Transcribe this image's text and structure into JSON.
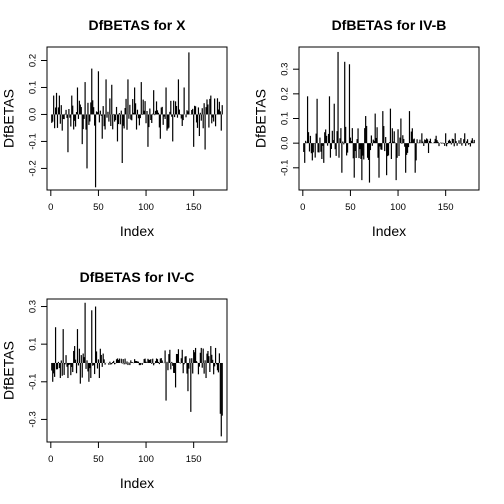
{
  "chart_data": [
    {
      "type": "histogram-line",
      "title": "DfBETAS for X",
      "xlabel": "Index",
      "ylabel": "DfBETAS",
      "xlim": [
        -4,
        185
      ],
      "ylim": [
        -0.28,
        0.25
      ],
      "xticks": [
        0,
        50,
        100,
        150
      ],
      "yticks": [
        -0.2,
        -0.1,
        0.0,
        0.1,
        0.2
      ],
      "ytick_labels": [
        "-0.2",
        "-0.1",
        "0.0",
        "0.1",
        "0.2"
      ],
      "seed": 11,
      "n": 180,
      "spikes": [
        {
          "x": 3,
          "y": 0.07
        },
        {
          "x": 6,
          "y": 0.08
        },
        {
          "x": 9,
          "y": 0.07
        },
        {
          "x": 12,
          "y": -0.06
        },
        {
          "x": 18,
          "y": -0.14
        },
        {
          "x": 22,
          "y": 0.07
        },
        {
          "x": 28,
          "y": 0.1
        },
        {
          "x": 33,
          "y": -0.11
        },
        {
          "x": 36,
          "y": 0.12
        },
        {
          "x": 38,
          "y": -0.2
        },
        {
          "x": 43,
          "y": 0.17
        },
        {
          "x": 47,
          "y": -0.27
        },
        {
          "x": 50,
          "y": 0.16
        },
        {
          "x": 54,
          "y": -0.09
        },
        {
          "x": 58,
          "y": 0.13
        },
        {
          "x": 64,
          "y": 0.11
        },
        {
          "x": 70,
          "y": -0.1
        },
        {
          "x": 75,
          "y": -0.18
        },
        {
          "x": 81,
          "y": 0.13
        },
        {
          "x": 88,
          "y": 0.1
        },
        {
          "x": 95,
          "y": 0.12
        },
        {
          "x": 102,
          "y": -0.12
        },
        {
          "x": 108,
          "y": 0.09
        },
        {
          "x": 115,
          "y": -0.09
        },
        {
          "x": 121,
          "y": 0.1
        },
        {
          "x": 128,
          "y": -0.1
        },
        {
          "x": 134,
          "y": 0.13
        },
        {
          "x": 140,
          "y": 0.1
        },
        {
          "x": 145,
          "y": 0.23
        },
        {
          "x": 150,
          "y": -0.12
        },
        {
          "x": 156,
          "y": -0.08
        },
        {
          "x": 162,
          "y": -0.13
        },
        {
          "x": 168,
          "y": 0.07
        },
        {
          "x": 175,
          "y": 0.06
        },
        {
          "x": 179,
          "y": -0.06
        }
      ]
    },
    {
      "type": "histogram-line",
      "title": "DfBETAS for IV-B",
      "xlabel": "Index",
      "ylabel": "DfBETAS",
      "xlim": [
        -4,
        185
      ],
      "ylim": [
        -0.19,
        0.39
      ],
      "xticks": [
        0,
        50,
        100,
        150
      ],
      "yticks": [
        -0.1,
        0.0,
        0.1,
        0.2,
        0.3
      ],
      "ytick_labels": [
        "-0.1",
        "0.0",
        "0.1",
        "0.2",
        "0.3"
      ],
      "seed": 23,
      "n": 180,
      "spikes": [
        {
          "x": 2,
          "y": -0.08
        },
        {
          "x": 5,
          "y": 0.19
        },
        {
          "x": 10,
          "y": -0.07
        },
        {
          "x": 15,
          "y": 0.18
        },
        {
          "x": 22,
          "y": -0.08
        },
        {
          "x": 28,
          "y": 0.19
        },
        {
          "x": 33,
          "y": 0.16
        },
        {
          "x": 37,
          "y": 0.37
        },
        {
          "x": 41,
          "y": -0.12
        },
        {
          "x": 44,
          "y": 0.33
        },
        {
          "x": 49,
          "y": 0.32
        },
        {
          "x": 54,
          "y": -0.14
        },
        {
          "x": 58,
          "y": 0.06
        },
        {
          "x": 62,
          "y": -0.15
        },
        {
          "x": 66,
          "y": 0.11
        },
        {
          "x": 70,
          "y": -0.16
        },
        {
          "x": 76,
          "y": 0.12
        },
        {
          "x": 80,
          "y": -0.14
        },
        {
          "x": 84,
          "y": 0.13
        },
        {
          "x": 88,
          "y": -0.13
        },
        {
          "x": 92,
          "y": 0.14
        },
        {
          "x": 98,
          "y": -0.15
        },
        {
          "x": 103,
          "y": 0.1
        },
        {
          "x": 108,
          "y": -0.12
        },
        {
          "x": 112,
          "y": 0.13
        },
        {
          "x": 118,
          "y": -0.12
        },
        {
          "x": 125,
          "y": 0.04
        },
        {
          "x": 132,
          "y": -0.04
        },
        {
          "x": 140,
          "y": 0.03
        },
        {
          "x": 150,
          "y": 0.04
        },
        {
          "x": 160,
          "y": 0.04
        },
        {
          "x": 170,
          "y": 0.04
        },
        {
          "x": 178,
          "y": 0.02
        }
      ]
    },
    {
      "type": "histogram-line",
      "title": "DfBETAS for IV-C",
      "xlabel": "Index",
      "ylabel": "DfBETAS",
      "xlim": [
        -4,
        185
      ],
      "ylim": [
        -0.42,
        0.34
      ],
      "xticks": [
        0,
        50,
        100,
        150
      ],
      "yticks": [
        -0.3,
        -0.1,
        0.1,
        0.3
      ],
      "ytick_labels": [
        "-0.3",
        "-0.1",
        "0.1",
        "0.3"
      ],
      "seed": 37,
      "n": 180,
      "spikes": [
        {
          "x": 2,
          "y": -0.1
        },
        {
          "x": 5,
          "y": 0.19
        },
        {
          "x": 10,
          "y": -0.08
        },
        {
          "x": 13,
          "y": 0.18
        },
        {
          "x": 18,
          "y": -0.08
        },
        {
          "x": 25,
          "y": 0.09
        },
        {
          "x": 28,
          "y": 0.18
        },
        {
          "x": 31,
          "y": -0.11
        },
        {
          "x": 36,
          "y": 0.32
        },
        {
          "x": 40,
          "y": -0.1
        },
        {
          "x": 43,
          "y": 0.28
        },
        {
          "x": 47,
          "y": 0.3
        },
        {
          "x": 51,
          "y": -0.08
        },
        {
          "x": 55,
          "y": 0.05
        },
        {
          "x": 121,
          "y": -0.2
        },
        {
          "x": 125,
          "y": 0.07
        },
        {
          "x": 131,
          "y": -0.13
        },
        {
          "x": 138,
          "y": 0.07
        },
        {
          "x": 144,
          "y": -0.15
        },
        {
          "x": 147,
          "y": -0.26
        },
        {
          "x": 152,
          "y": 0.08
        },
        {
          "x": 158,
          "y": 0.08
        },
        {
          "x": 163,
          "y": -0.08
        },
        {
          "x": 168,
          "y": 0.09
        },
        {
          "x": 173,
          "y": 0.08
        },
        {
          "x": 176,
          "y": -0.05
        },
        {
          "x": 178,
          "y": -0.27
        },
        {
          "x": 179,
          "y": -0.39
        },
        {
          "x": 180,
          "y": -0.28
        }
      ]
    }
  ]
}
